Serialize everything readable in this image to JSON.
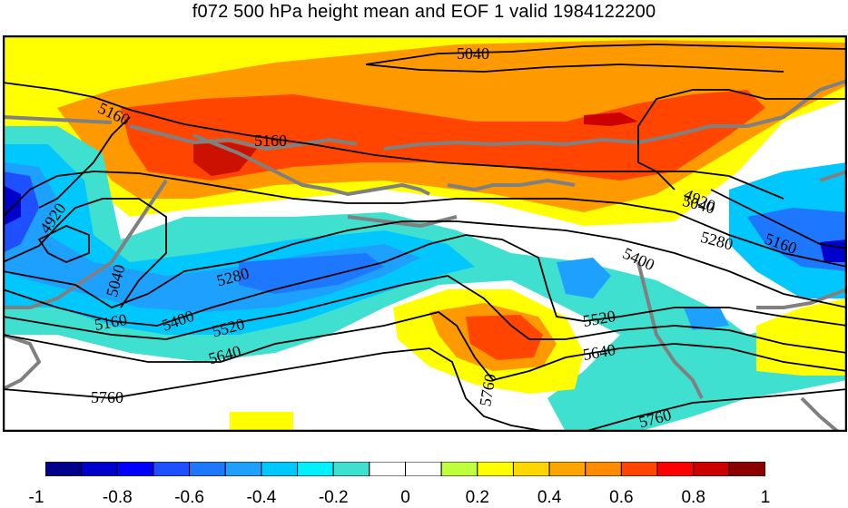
{
  "title": "f072 500 hPa height mean and EOF 1 valid 1984122200",
  "contour_labels": [
    "5040",
    "5160",
    "5160",
    "4920",
    "5040",
    "5040",
    "5280",
    "5160",
    "4920",
    "5400",
    "5040",
    "5160",
    "5280",
    "5400",
    "5520",
    "5640",
    "5520",
    "5640",
    "5760",
    "5760",
    "5760"
  ],
  "colorbar": {
    "colors": [
      "#00008b",
      "#0000cd",
      "#0000ff",
      "#1e50ff",
      "#1e78ff",
      "#1ea0ff",
      "#00c8ff",
      "#00f0ff",
      "#40e0d0",
      "#ffffff",
      "#ffffff",
      "#c0ff3e",
      "#ffff00",
      "#ffd700",
      "#ffa500",
      "#ff8c00",
      "#ff4500",
      "#ff0000",
      "#cd0000",
      "#8b0000"
    ],
    "tick_labels": [
      "-1",
      "-0.8",
      "-0.6",
      "-0.4",
      "-0.2",
      "0",
      "0.2",
      "0.4",
      "0.6",
      "0.8",
      "1"
    ]
  }
}
